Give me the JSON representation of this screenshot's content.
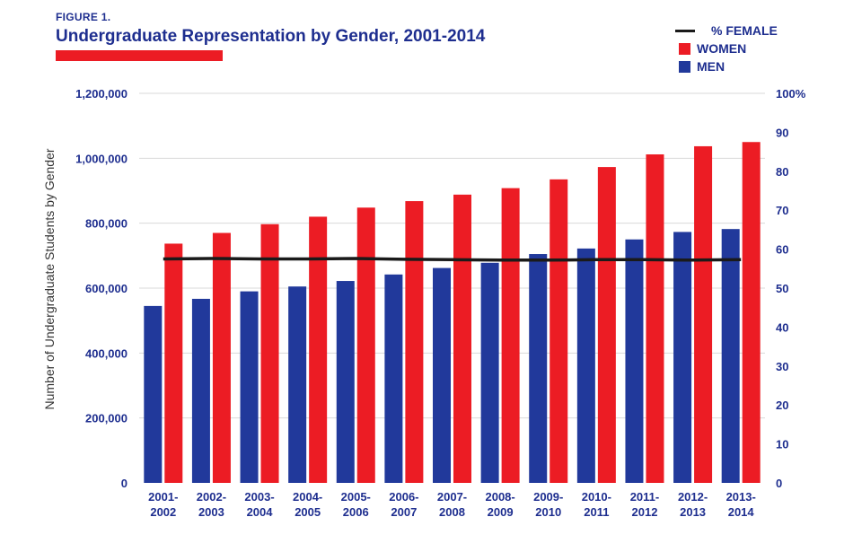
{
  "header": {
    "figure_label": "FIGURE 1.",
    "title": "Undergraduate Representation by Gender, 2001-2014"
  },
  "legend": {
    "female_pct": "% FEMALE",
    "women": "WOMEN",
    "men": "MEN"
  },
  "colors": {
    "women": "#ec1c24",
    "men": "#21399b",
    "line": "#1a1a1a",
    "text": "#1e2e8f",
    "grid": "#d9d9d9"
  },
  "chart_data": {
    "type": "bar",
    "title": "Undergraduate Representation by Gender, 2001-2014",
    "ylabel": "Number of Undergraduate Students by Gender",
    "ylim": [
      0,
      1200000
    ],
    "y2lim": [
      0,
      100
    ],
    "yticks": [
      "1,200,000",
      "1,000,000",
      "800,000",
      "600,000",
      "400,000",
      "200,000",
      "0"
    ],
    "y2ticks": [
      "100%",
      "90",
      "80",
      "70",
      "60",
      "50",
      "40",
      "30",
      "20",
      "10",
      "0"
    ],
    "categories": [
      [
        "2001-",
        "2002"
      ],
      [
        "2002-",
        "2003"
      ],
      [
        "2003-",
        "2004"
      ],
      [
        "2004-",
        "2005"
      ],
      [
        "2005-",
        "2006"
      ],
      [
        "2006-",
        "2007"
      ],
      [
        "2007-",
        "2008"
      ],
      [
        "2008-",
        "2009"
      ],
      [
        "2009-",
        "2010"
      ],
      [
        "2010-",
        "2011"
      ],
      [
        "2011-",
        "2012"
      ],
      [
        "2012-",
        "2013"
      ],
      [
        "2013-",
        "2014"
      ]
    ],
    "series": [
      {
        "name": "MEN",
        "values": [
          545000,
          567000,
          590000,
          605000,
          622000,
          642000,
          662000,
          678000,
          705000,
          722000,
          750000,
          773000,
          782000
        ]
      },
      {
        "name": "WOMEN",
        "values": [
          737000,
          770000,
          797000,
          820000,
          848000,
          868000,
          888000,
          908000,
          935000,
          973000,
          1012000,
          1037000,
          1050000
        ]
      },
      {
        "name": "% FEMALE",
        "axis": "right",
        "type": "line",
        "values": [
          57.5,
          57.6,
          57.5,
          57.5,
          57.6,
          57.4,
          57.3,
          57.2,
          57.2,
          57.3,
          57.3,
          57.2,
          57.3
        ]
      }
    ],
    "grid": true
  }
}
